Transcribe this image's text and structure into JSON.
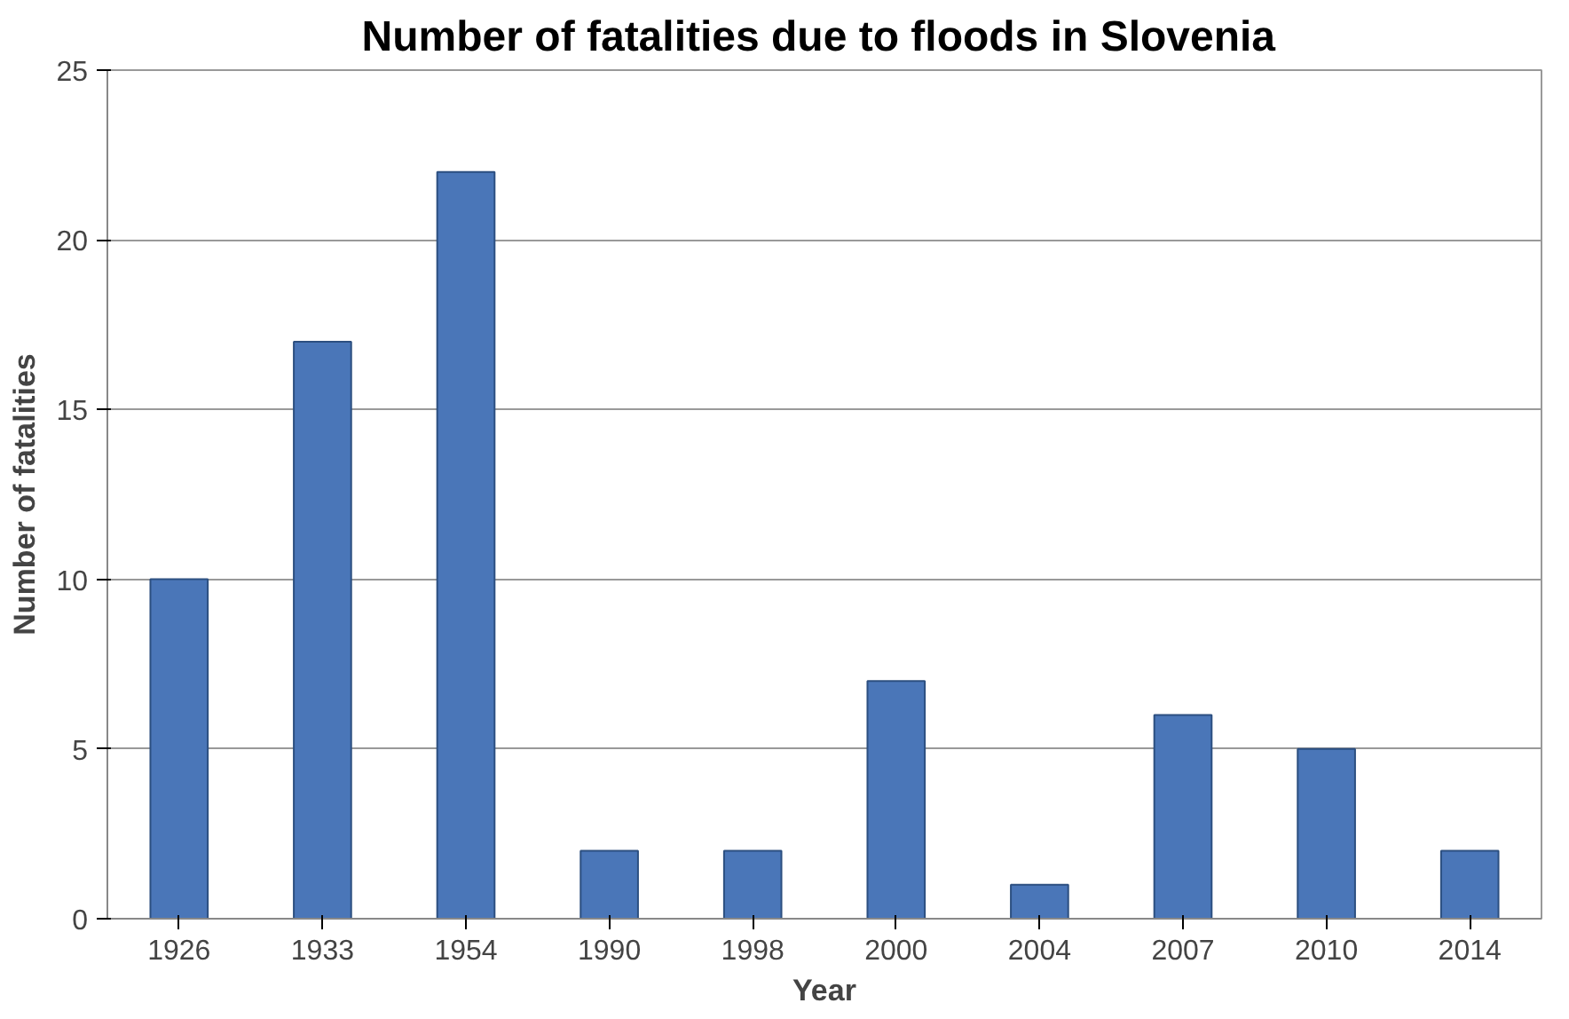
{
  "chart_data": {
    "type": "bar",
    "title": "Number of fatalities  due to floods in Slovenia",
    "xlabel": "Year",
    "ylabel": "Number of fatalities",
    "categories": [
      "1926",
      "1933",
      "1954",
      "1990",
      "1998",
      "2000",
      "2004",
      "2007",
      "2010",
      "2014"
    ],
    "values": [
      10,
      17,
      22,
      2,
      2,
      7,
      1,
      6,
      5,
      2
    ],
    "color": "#4a76b8",
    "ylim": [
      0,
      25
    ],
    "yticks": [
      0,
      5,
      10,
      15,
      20,
      25
    ],
    "grid": "y"
  }
}
